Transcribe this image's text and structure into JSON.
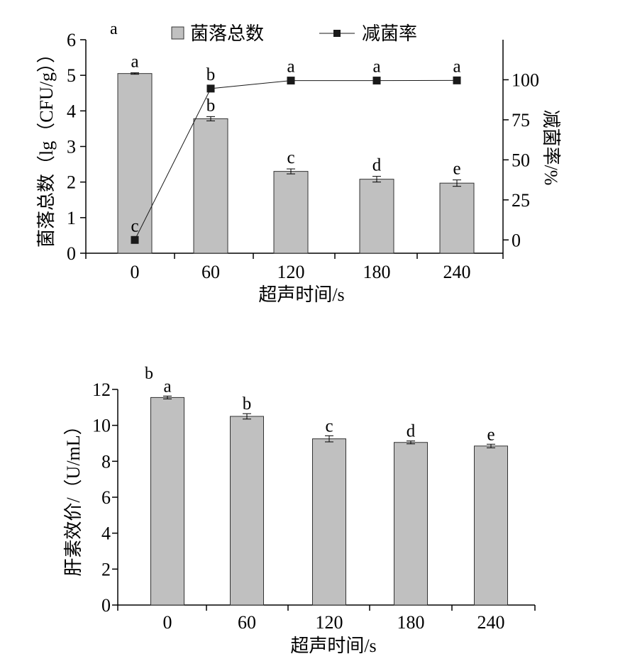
{
  "chart_data": [
    {
      "panel_label": "a",
      "type": "bar",
      "categories": [
        "0",
        "60",
        "120",
        "180",
        "240"
      ],
      "xlabel": "超声时间/s",
      "ylabel": "菌落总数（lg（CFU/g））",
      "y2label": "减菌率/%",
      "ylim": [
        0,
        6
      ],
      "yticks": [
        "0",
        "1",
        "2",
        "3",
        "4",
        "5",
        "6"
      ],
      "y2lim": [
        -8.3,
        125
      ],
      "y2ticks": [
        "0",
        "25",
        "50",
        "75",
        "100"
      ],
      "legend_position": "top",
      "series": [
        {
          "name": "菌落总数",
          "type": "bar",
          "axis": "left",
          "color": "#c0c0c0",
          "values": [
            5.05,
            3.78,
            2.3,
            2.08,
            1.97
          ],
          "errors": [
            0.02,
            0.06,
            0.07,
            0.08,
            0.09
          ],
          "labels": [
            "a",
            "b",
            "c",
            "d",
            "e"
          ]
        },
        {
          "name": "减菌率",
          "type": "line",
          "axis": "right",
          "color": "#1a1a1a",
          "values": [
            0,
            94.5,
            99.5,
            99.5,
            99.6
          ],
          "labels": [
            "c",
            "b",
            "a",
            "a",
            "a"
          ]
        }
      ]
    },
    {
      "panel_label": "b",
      "type": "bar",
      "categories": [
        "0",
        "60",
        "120",
        "180",
        "240"
      ],
      "xlabel": "超声时间/s",
      "ylabel": "肝素效价/（U/mL）",
      "ylim": [
        0,
        12
      ],
      "yticks": [
        "0",
        "2",
        "4",
        "6",
        "8",
        "10",
        "12"
      ],
      "series": [
        {
          "type": "bar",
          "axis": "left",
          "color": "#c0c0c0",
          "values": [
            11.55,
            10.5,
            9.25,
            9.05,
            8.85
          ],
          "errors": [
            0.08,
            0.15,
            0.17,
            0.08,
            0.1
          ],
          "labels": [
            "a",
            "b",
            "c",
            "d",
            "e"
          ]
        }
      ]
    }
  ]
}
